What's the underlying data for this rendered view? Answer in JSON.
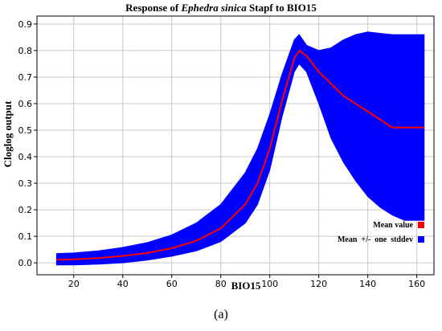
{
  "chart_data": {
    "type": "area",
    "title_prefix": "Response of ",
    "title_species": "Ephedra sinica",
    "title_suffix": " Stapf to BIO15",
    "xlabel": "BIO15",
    "ylabel": "Cloglog output",
    "xlim": [
      5,
      167
    ],
    "ylim": [
      -0.045,
      0.93
    ],
    "xticks": [
      20,
      40,
      60,
      80,
      100,
      120,
      140,
      160
    ],
    "yticks": [
      0.0,
      0.1,
      0.2,
      0.3,
      0.4,
      0.5,
      0.6,
      0.7,
      0.8,
      0.9
    ],
    "grid": true,
    "legend_placement": "bottom-right",
    "series": [
      {
        "name": "Mean value",
        "color": "#ff0000",
        "x": [
          13,
          20,
          30,
          40,
          50,
          60,
          70,
          80,
          90,
          95,
          100,
          105,
          110,
          112,
          115,
          120,
          130,
          140,
          150,
          163
        ],
        "y": [
          0.012,
          0.013,
          0.018,
          0.026,
          0.037,
          0.055,
          0.083,
          0.13,
          0.22,
          0.3,
          0.43,
          0.61,
          0.77,
          0.8,
          0.78,
          0.72,
          0.63,
          0.57,
          0.51,
          0.51
        ]
      },
      {
        "name": "Mean  +/-  one  stddev",
        "color": "#0000ff",
        "x": [
          13,
          20,
          30,
          40,
          50,
          60,
          70,
          80,
          90,
          95,
          100,
          105,
          110,
          112,
          115,
          120,
          125,
          130,
          135,
          140,
          145,
          150,
          155,
          163
        ],
        "upper": [
          0.035,
          0.037,
          0.045,
          0.058,
          0.076,
          0.105,
          0.15,
          0.22,
          0.34,
          0.43,
          0.56,
          0.71,
          0.84,
          0.86,
          0.82,
          0.8,
          0.81,
          0.84,
          0.86,
          0.87,
          0.865,
          0.86,
          0.86,
          0.86
        ],
        "lower": [
          -0.008,
          -0.008,
          -0.005,
          0.0,
          0.01,
          0.025,
          0.045,
          0.08,
          0.15,
          0.22,
          0.35,
          0.55,
          0.72,
          0.75,
          0.72,
          0.6,
          0.47,
          0.38,
          0.31,
          0.25,
          0.21,
          0.18,
          0.16,
          0.16
        ]
      }
    ]
  },
  "caption": "(a)"
}
